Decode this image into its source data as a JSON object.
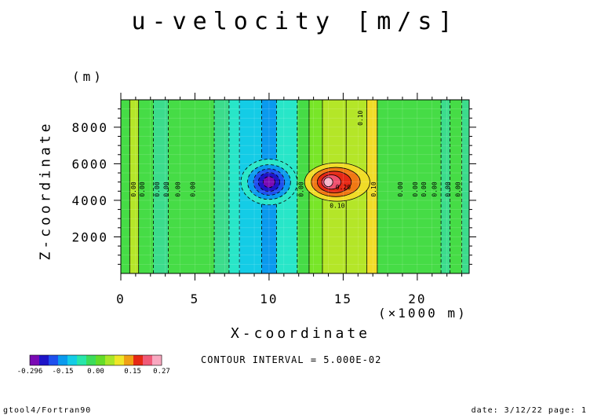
{
  "chart_data": {
    "type": "heatmap",
    "title": "u-velocity [m/s]",
    "xlabel": "X-coordinate",
    "ylabel": "Z-coordinate",
    "x_unit": "(×1000 m)",
    "y_unit": "(m)",
    "xlim": [
      0,
      23.5
    ],
    "ylim": [
      0,
      9500
    ],
    "x_ticks": [
      0,
      5,
      10,
      15,
      20
    ],
    "y_ticks": [
      2000,
      4000,
      6000,
      8000
    ],
    "x_tick_labels": [
      "0",
      "5",
      "10",
      "15",
      "20"
    ],
    "y_tick_labels": [
      "2000",
      "4000",
      "6000",
      "8000"
    ],
    "vertical_bands": [
      {
        "x0": 0,
        "x1": 0.6,
        "value": 0.02
      },
      {
        "x0": 0.6,
        "x1": 1.2,
        "value": 0.07
      },
      {
        "x0": 1.2,
        "x1": 2.2,
        "value": 0.02
      },
      {
        "x0": 2.2,
        "x1": 3.2,
        "value": -0.02
      },
      {
        "x0": 3.2,
        "x1": 6.3,
        "value": 0.02
      },
      {
        "x0": 6.3,
        "x1": 7.3,
        "value": -0.02
      },
      {
        "x0": 7.3,
        "x1": 8.0,
        "value": -0.07
      },
      {
        "x0": 8.0,
        "x1": 9.5,
        "value": -0.08
      },
      {
        "x0": 9.5,
        "x1": 10.5,
        "value": -0.12
      },
      {
        "x0": 10.5,
        "x1": 11.9,
        "value": -0.07
      },
      {
        "x0": 11.9,
        "x1": 12.7,
        "value": 0.02
      },
      {
        "x0": 12.7,
        "x1": 13.6,
        "value": 0.04
      },
      {
        "x0": 13.6,
        "x1": 15.2,
        "value": 0.07
      },
      {
        "x0": 15.2,
        "x1": 16.6,
        "value": 0.07
      },
      {
        "x0": 16.6,
        "x1": 17.3,
        "value": 0.12
      },
      {
        "x0": 17.3,
        "x1": 21.6,
        "value": 0.02
      },
      {
        "x0": 21.6,
        "x1": 22.2,
        "value": -0.02
      },
      {
        "x0": 22.2,
        "x1": 23.0,
        "value": 0.02
      },
      {
        "x0": 23.0,
        "x1": 23.5,
        "value": -0.02
      }
    ],
    "blobs": [
      {
        "cx": 10.0,
        "cz": 5000,
        "rx": 1.9,
        "rz": 1250,
        "value": -0.07
      },
      {
        "cx": 10.0,
        "cz": 5000,
        "rx": 1.45,
        "rz": 950,
        "value": -0.12
      },
      {
        "cx": 10.0,
        "cz": 5000,
        "rx": 1.05,
        "rz": 720,
        "value": -0.17
      },
      {
        "cx": 10.0,
        "cz": 5000,
        "rx": 0.72,
        "rz": 520,
        "value": -0.22
      },
      {
        "cx": 10.0,
        "cz": 5000,
        "rx": 0.4,
        "rz": 300,
        "value": -0.27
      },
      {
        "cx": 14.6,
        "cz": 5000,
        "rx": 2.2,
        "rz": 1050,
        "value": 0.12
      },
      {
        "cx": 14.5,
        "cz": 5000,
        "rx": 1.65,
        "rz": 800,
        "value": 0.17
      },
      {
        "cx": 14.4,
        "cz": 5000,
        "rx": 1.15,
        "rz": 590,
        "value": 0.22
      },
      {
        "cx": 14.2,
        "cz": 5000,
        "rx": 0.65,
        "rz": 390,
        "value": 0.26
      },
      {
        "cx": 14.0,
        "cz": 5000,
        "rx": 0.3,
        "rz": 250,
        "value": 0.27
      }
    ],
    "contour_labels": [
      {
        "x": 1.0,
        "z": 4600,
        "text": "0.00"
      },
      {
        "x": 1.6,
        "z": 4600,
        "text": "0.00"
      },
      {
        "x": 2.6,
        "z": 4600,
        "text": "0.00"
      },
      {
        "x": 3.2,
        "z": 4600,
        "text": "0.00"
      },
      {
        "x": 4.0,
        "z": 4600,
        "text": "0.00"
      },
      {
        "x": 5.0,
        "z": 4600,
        "text": "0.00"
      },
      {
        "x": 12.3,
        "z": 4600,
        "text": "0.00"
      },
      {
        "x": 17.2,
        "z": 4600,
        "text": "0.10"
      },
      {
        "x": 19.0,
        "z": 4600,
        "text": "0.00"
      },
      {
        "x": 20.0,
        "z": 4600,
        "text": "0.00"
      },
      {
        "x": 20.6,
        "z": 4600,
        "text": "0.00"
      },
      {
        "x": 21.3,
        "z": 4600,
        "text": "0.00"
      },
      {
        "x": 22.2,
        "z": 4600,
        "text": "0.00"
      },
      {
        "x": 22.9,
        "z": 4600,
        "text": "0.00"
      },
      {
        "x": 16.3,
        "z": 8500,
        "text": "0.10"
      }
    ],
    "flat_labels": [
      {
        "x": 15.0,
        "z": 4600,
        "text": "0.20"
      },
      {
        "x": 14.6,
        "z": 3600,
        "text": "0.10"
      }
    ],
    "colorbar": {
      "colors": [
        "#7a0ab4",
        "#1e14c8",
        "#1e50ee",
        "#0a9aee",
        "#14cce6",
        "#28e6aa",
        "#3cdc5a",
        "#64dc28",
        "#aae628",
        "#f0e628",
        "#f0a014",
        "#e62814",
        "#f05a78",
        "#f8a8c0"
      ],
      "labels": [
        "-0.296",
        "-0.15",
        "0.00",
        "0.15",
        "0.27"
      ]
    },
    "contour_interval": "CONTOUR INTERVAL = 5.000E-02"
  },
  "footer": {
    "left": "gtool4/Fortran90",
    "right": "date: 3/12/22 page: 1"
  }
}
